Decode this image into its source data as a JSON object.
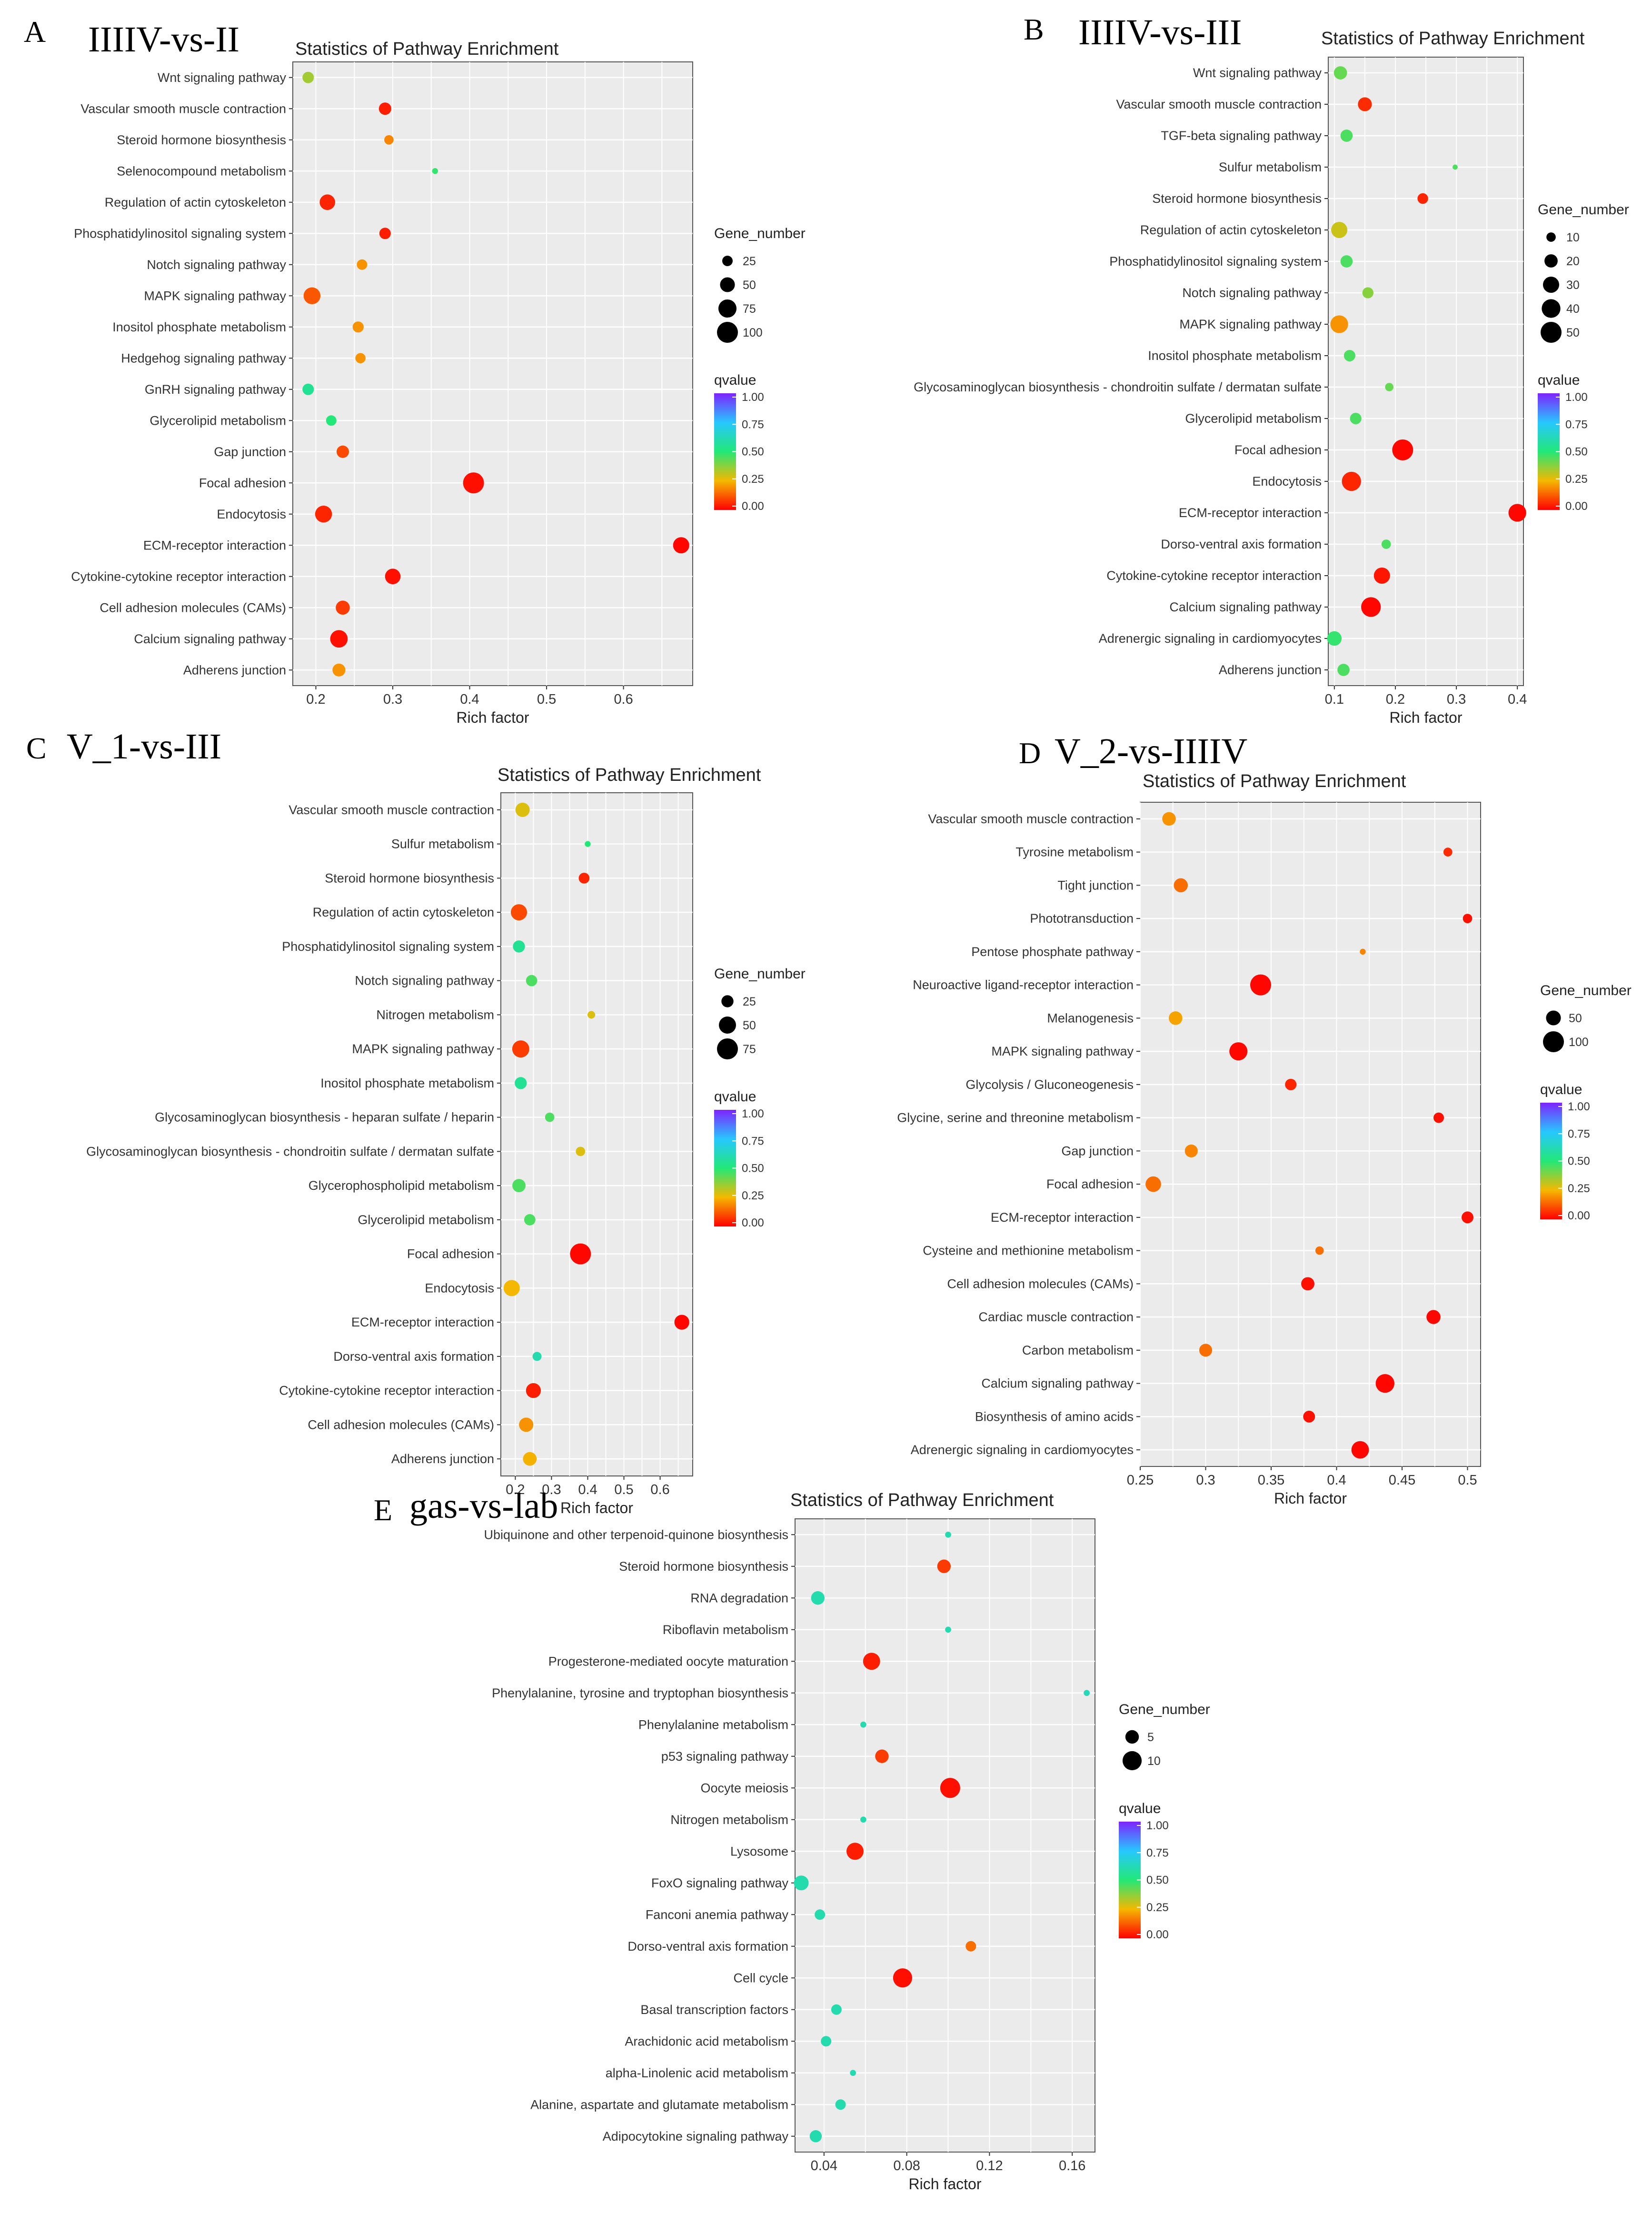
{
  "colors": {
    "panel_bg": "#ebebeb",
    "grid": "#ffffff",
    "q0": "#ff0000",
    "q025": "#f5b800",
    "q05": "#22e878",
    "q075": "#27c7ff",
    "q1": "#7f22ff"
  },
  "chart_data": [
    {
      "type": "scatter",
      "letter": "A",
      "name": "IIIIV-vs-II",
      "title": "Statistics of Pathway Enrichment",
      "xlabel": "Rich factor",
      "ylabel": "",
      "xlim": [
        0.17,
        0.69
      ],
      "xticks": [
        0.2,
        0.3,
        0.4,
        0.5,
        0.6
      ],
      "size_legend_title": "Gene_number",
      "size_legend": [
        25,
        50,
        75,
        100
      ],
      "max_count": 100,
      "color_legend_title": "qvalue",
      "color_ticks": [
        "1.00",
        "0.75",
        "0.50",
        "0.25",
        "0.00"
      ],
      "pathways": [
        {
          "name": "Wnt signaling pathway",
          "rich_factor": 0.19,
          "gene_number": 30,
          "qvalue": 0.35
        },
        {
          "name": "Vascular smooth muscle contraction",
          "rich_factor": 0.29,
          "gene_number": 35,
          "qvalue": 0.04
        },
        {
          "name": "Steroid hormone biosynthesis",
          "rich_factor": 0.295,
          "gene_number": 20,
          "qvalue": 0.18
        },
        {
          "name": "Selenocompound metabolism",
          "rich_factor": 0.355,
          "gene_number": 8,
          "qvalue": 0.48
        },
        {
          "name": "Regulation of actin cytoskeleton",
          "rich_factor": 0.215,
          "gene_number": 55,
          "qvalue": 0.05
        },
        {
          "name": "Phosphatidylinositol signaling system",
          "rich_factor": 0.29,
          "gene_number": 30,
          "qvalue": 0.04
        },
        {
          "name": "Notch signaling pathway",
          "rich_factor": 0.26,
          "gene_number": 25,
          "qvalue": 0.2
        },
        {
          "name": "MAPK signaling pathway",
          "rich_factor": 0.195,
          "gene_number": 65,
          "qvalue": 0.12
        },
        {
          "name": "Inositol phosphate metabolism",
          "rich_factor": 0.255,
          "gene_number": 28,
          "qvalue": 0.2
        },
        {
          "name": "Hedgehog signaling pathway",
          "rich_factor": 0.258,
          "gene_number": 24,
          "qvalue": 0.2
        },
        {
          "name": "GnRH signaling pathway",
          "rich_factor": 0.19,
          "gene_number": 30,
          "qvalue": 0.55
        },
        {
          "name": "Glycerolipid metabolism",
          "rich_factor": 0.22,
          "gene_number": 25,
          "qvalue": 0.5
        },
        {
          "name": "Gap junction",
          "rich_factor": 0.235,
          "gene_number": 35,
          "qvalue": 0.1
        },
        {
          "name": "Focal adhesion",
          "rich_factor": 0.405,
          "gene_number": 100,
          "qvalue": 0.02
        },
        {
          "name": "Endocytosis",
          "rich_factor": 0.21,
          "gene_number": 65,
          "qvalue": 0.05
        },
        {
          "name": "ECM-receptor interaction",
          "rich_factor": 0.675,
          "gene_number": 60,
          "qvalue": 0.01
        },
        {
          "name": "Cytokine-cytokine receptor interaction",
          "rich_factor": 0.3,
          "gene_number": 55,
          "qvalue": 0.02
        },
        {
          "name": "Cell adhesion molecules (CAMs)",
          "rich_factor": 0.235,
          "gene_number": 45,
          "qvalue": 0.08
        },
        {
          "name": "Calcium signaling pathway",
          "rich_factor": 0.23,
          "gene_number": 70,
          "qvalue": 0.02
        },
        {
          "name": "Adherens junction",
          "rich_factor": 0.23,
          "gene_number": 38,
          "qvalue": 0.2
        }
      ]
    },
    {
      "type": "scatter",
      "letter": "B",
      "name": "IIIIV-vs-III",
      "title": "Statistics of Pathway Enrichment",
      "xlabel": "Rich factor",
      "ylabel": "",
      "xlim": [
        0.09,
        0.41
      ],
      "xticks": [
        0.1,
        0.2,
        0.3,
        0.4
      ],
      "size_legend_title": "Gene_number",
      "size_legend": [
        10,
        20,
        30,
        40,
        50
      ],
      "max_count": 50,
      "color_legend_title": "qvalue",
      "color_ticks": [
        "1.00",
        "0.75",
        "0.50",
        "0.25",
        "0.00"
      ],
      "pathways": [
        {
          "name": "Wnt signaling pathway",
          "rich_factor": 0.11,
          "gene_number": 20,
          "qvalue": 0.42
        },
        {
          "name": "Vascular smooth muscle contraction",
          "rich_factor": 0.15,
          "gene_number": 22,
          "qvalue": 0.06
        },
        {
          "name": "TGF-beta signaling pathway",
          "rich_factor": 0.12,
          "gene_number": 17,
          "qvalue": 0.45
        },
        {
          "name": "Sulfur metabolism",
          "rich_factor": 0.298,
          "gene_number": 3,
          "qvalue": 0.45
        },
        {
          "name": "Steroid hormone biosynthesis",
          "rich_factor": 0.245,
          "gene_number": 13,
          "qvalue": 0.05
        },
        {
          "name": "Regulation of actin cytoskeleton",
          "rich_factor": 0.108,
          "gene_number": 30,
          "qvalue": 0.3
        },
        {
          "name": "Phosphatidylinositol signaling system",
          "rich_factor": 0.12,
          "gene_number": 17,
          "qvalue": 0.45
        },
        {
          "name": "Notch signaling pathway",
          "rich_factor": 0.155,
          "gene_number": 14,
          "qvalue": 0.38
        },
        {
          "name": "MAPK signaling pathway",
          "rich_factor": 0.108,
          "gene_number": 36,
          "qvalue": 0.2
        },
        {
          "name": "Inositol phosphate metabolism",
          "rich_factor": 0.125,
          "gene_number": 15,
          "qvalue": 0.45
        },
        {
          "name": "Glycosaminoglycan biosynthesis - chondroitin sulfate / dermatan sulfate",
          "rich_factor": 0.19,
          "gene_number": 8,
          "qvalue": 0.42
        },
        {
          "name": "Glycerolipid metabolism",
          "rich_factor": 0.135,
          "gene_number": 15,
          "qvalue": 0.45
        },
        {
          "name": "Focal adhesion",
          "rich_factor": 0.212,
          "gene_number": 50,
          "qvalue": 0.01
        },
        {
          "name": "Endocytosis",
          "rich_factor": 0.128,
          "gene_number": 42,
          "qvalue": 0.05
        },
        {
          "name": "ECM-receptor interaction",
          "rich_factor": 0.4,
          "gene_number": 36,
          "qvalue": 0.01
        },
        {
          "name": "Dorso-ventral axis formation",
          "rich_factor": 0.185,
          "gene_number": 10,
          "qvalue": 0.45
        },
        {
          "name": "Cytokine-cytokine receptor interaction",
          "rich_factor": 0.178,
          "gene_number": 30,
          "qvalue": 0.03
        },
        {
          "name": "Calcium signaling pathway",
          "rich_factor": 0.16,
          "gene_number": 44,
          "qvalue": 0.01
        },
        {
          "name": "Adrenergic signaling in cardiomyocytes",
          "rich_factor": 0.1,
          "gene_number": 24,
          "qvalue": 0.48
        },
        {
          "name": "Adherens junction",
          "rich_factor": 0.115,
          "gene_number": 17,
          "qvalue": 0.45
        }
      ]
    },
    {
      "type": "scatter",
      "letter": "C",
      "name": "V_1-vs-III",
      "title": "Statistics of Pathway Enrichment",
      "xlabel": "Rich factor",
      "ylabel": "",
      "xlim": [
        0.16,
        0.69
      ],
      "xticks": [
        0.2,
        0.3,
        0.4,
        0.5,
        0.6
      ],
      "size_legend_title": "Gene_number",
      "size_legend": [
        25,
        50,
        75
      ],
      "max_count": 75,
      "color_legend_title": "qvalue",
      "color_ticks": [
        "1.00",
        "0.75",
        "0.50",
        "0.25",
        "0.00"
      ],
      "pathways": [
        {
          "name": "Vascular smooth muscle contraction",
          "rich_factor": 0.22,
          "gene_number": 35,
          "qvalue": 0.28
        },
        {
          "name": "Sulfur metabolism",
          "rich_factor": 0.4,
          "gene_number": 6,
          "qvalue": 0.5
        },
        {
          "name": "Steroid hormone biosynthesis",
          "rich_factor": 0.39,
          "gene_number": 20,
          "qvalue": 0.05
        },
        {
          "name": "Regulation of actin cytoskeleton",
          "rich_factor": 0.21,
          "gene_number": 45,
          "qvalue": 0.1
        },
        {
          "name": "Phosphatidylinositol signaling system",
          "rich_factor": 0.21,
          "gene_number": 25,
          "qvalue": 0.55
        },
        {
          "name": "Notch signaling pathway",
          "rich_factor": 0.245,
          "gene_number": 22,
          "qvalue": 0.45
        },
        {
          "name": "Nitrogen metabolism",
          "rich_factor": 0.41,
          "gene_number": 10,
          "qvalue": 0.28
        },
        {
          "name": "MAPK signaling pathway",
          "rich_factor": 0.215,
          "gene_number": 50,
          "qvalue": 0.08
        },
        {
          "name": "Inositol phosphate metabolism",
          "rich_factor": 0.215,
          "gene_number": 25,
          "qvalue": 0.55
        },
        {
          "name": "Glycosaminoglycan biosynthesis - heparan sulfate / heparin",
          "rich_factor": 0.295,
          "gene_number": 15,
          "qvalue": 0.45
        },
        {
          "name": "Glycosaminoglycan biosynthesis - chondroitin sulfate / dermatan sulfate",
          "rich_factor": 0.38,
          "gene_number": 15,
          "qvalue": 0.28
        },
        {
          "name": "Glycerophospholipid metabolism",
          "rich_factor": 0.21,
          "gene_number": 30,
          "qvalue": 0.45
        },
        {
          "name": "Glycerolipid metabolism",
          "rich_factor": 0.24,
          "gene_number": 22,
          "qvalue": 0.45
        },
        {
          "name": "Focal adhesion",
          "rich_factor": 0.38,
          "gene_number": 75,
          "qvalue": 0.01
        },
        {
          "name": "Endocytosis",
          "rich_factor": 0.19,
          "gene_number": 45,
          "qvalue": 0.25
        },
        {
          "name": "ECM-receptor interaction",
          "rich_factor": 0.66,
          "gene_number": 38,
          "qvalue": 0.01
        },
        {
          "name": "Dorso-ventral axis formation",
          "rich_factor": 0.26,
          "gene_number": 14,
          "qvalue": 0.6
        },
        {
          "name": "Cytokine-cytokine receptor interaction",
          "rich_factor": 0.25,
          "gene_number": 38,
          "qvalue": 0.04
        },
        {
          "name": "Cell adhesion molecules (CAMs)",
          "rich_factor": 0.23,
          "gene_number": 35,
          "qvalue": 0.2
        },
        {
          "name": "Adherens junction",
          "rich_factor": 0.24,
          "gene_number": 32,
          "qvalue": 0.24
        }
      ]
    },
    {
      "type": "scatter",
      "letter": "D",
      "name": "V_2-vs-IIIIV",
      "title": "Statistics of Pathway Enrichment",
      "xlabel": "Rich factor",
      "ylabel": "",
      "xlim": [
        0.25,
        0.51
      ],
      "xticks": [
        0.25,
        0.3,
        0.35,
        0.4,
        0.45,
        0.5
      ],
      "size_legend_title": "Gene_number",
      "size_legend": [
        50,
        100
      ],
      "max_count": 100,
      "color_legend_title": "qvalue",
      "color_ticks": [
        "1.00",
        "0.75",
        "0.50",
        "0.25",
        "0.00"
      ],
      "pathways": [
        {
          "name": "Vascular smooth muscle contraction",
          "rich_factor": 0.272,
          "gene_number": 42,
          "qvalue": 0.2
        },
        {
          "name": "Tyrosine metabolism",
          "rich_factor": 0.485,
          "gene_number": 18,
          "qvalue": 0.06
        },
        {
          "name": "Tight junction",
          "rich_factor": 0.281,
          "gene_number": 45,
          "qvalue": 0.15
        },
        {
          "name": "Phototransduction",
          "rich_factor": 0.5,
          "gene_number": 20,
          "qvalue": 0.02
        },
        {
          "name": "Pentose phosphate pathway",
          "rich_factor": 0.42,
          "gene_number": 8,
          "qvalue": 0.18
        },
        {
          "name": "Neuroactive ligand-receptor interaction",
          "rich_factor": 0.342,
          "gene_number": 100,
          "qvalue": 0.01
        },
        {
          "name": "Melanogenesis",
          "rich_factor": 0.277,
          "gene_number": 42,
          "qvalue": 0.22
        },
        {
          "name": "MAPK signaling pathway",
          "rich_factor": 0.325,
          "gene_number": 75,
          "qvalue": 0.01
        },
        {
          "name": "Glycolysis / Gluconeogenesis",
          "rich_factor": 0.365,
          "gene_number": 30,
          "qvalue": 0.05
        },
        {
          "name": "Glycine, serine and threonine metabolism",
          "rich_factor": 0.478,
          "gene_number": 25,
          "qvalue": 0.02
        },
        {
          "name": "Gap junction",
          "rich_factor": 0.289,
          "gene_number": 38,
          "qvalue": 0.18
        },
        {
          "name": "Focal adhesion",
          "rich_factor": 0.26,
          "gene_number": 55,
          "qvalue": 0.15
        },
        {
          "name": "ECM-receptor interaction",
          "rich_factor": 0.5,
          "gene_number": 32,
          "qvalue": 0.02
        },
        {
          "name": "Cysteine and methionine metabolism",
          "rich_factor": 0.387,
          "gene_number": 16,
          "qvalue": 0.15
        },
        {
          "name": "Cell adhesion molecules (CAMs)",
          "rich_factor": 0.378,
          "gene_number": 40,
          "qvalue": 0.02
        },
        {
          "name": "Cardiac muscle contraction",
          "rich_factor": 0.474,
          "gene_number": 45,
          "qvalue": 0.01
        },
        {
          "name": "Carbon metabolism",
          "rich_factor": 0.3,
          "gene_number": 38,
          "qvalue": 0.15
        },
        {
          "name": "Calcium signaling pathway",
          "rich_factor": 0.437,
          "gene_number": 80,
          "qvalue": 0.01
        },
        {
          "name": "Biosynthesis of amino acids",
          "rich_factor": 0.379,
          "gene_number": 32,
          "qvalue": 0.02
        },
        {
          "name": "Adrenergic signaling in cardiomyocytes",
          "rich_factor": 0.418,
          "gene_number": 70,
          "qvalue": 0.01
        }
      ]
    },
    {
      "type": "scatter",
      "letter": "E",
      "name": "gas-vs-lab",
      "title": "Statistics of Pathway Enrichment",
      "xlabel": "Rich factor",
      "ylabel": "",
      "xlim": [
        0.026,
        0.171
      ],
      "xticks": [
        0.04,
        0.08,
        0.12,
        0.16
      ],
      "size_legend_title": "Gene_number",
      "size_legend": [
        5,
        10
      ],
      "max_count": 12,
      "color_legend_title": "qvalue",
      "color_ticks": [
        "1.00",
        "0.75",
        "0.50",
        "0.25",
        "0.00"
      ],
      "pathways": [
        {
          "name": "Ubiquinone and other terpenoid-quinone biosynthesis",
          "rich_factor": 0.1,
          "gene_number": 1,
          "qvalue": 0.6
        },
        {
          "name": "Steroid hormone biosynthesis",
          "rich_factor": 0.098,
          "gene_number": 5,
          "qvalue": 0.08
        },
        {
          "name": "RNA degradation",
          "rich_factor": 0.037,
          "gene_number": 5,
          "qvalue": 0.6
        },
        {
          "name": "Riboflavin metabolism",
          "rich_factor": 0.1,
          "gene_number": 1,
          "qvalue": 0.6
        },
        {
          "name": "Progesterone-mediated oocyte maturation",
          "rich_factor": 0.063,
          "gene_number": 8,
          "qvalue": 0.04
        },
        {
          "name": "Phenylalanine, tyrosine and tryptophan biosynthesis",
          "rich_factor": 0.167,
          "gene_number": 1,
          "qvalue": 0.62
        },
        {
          "name": "Phenylalanine metabolism",
          "rich_factor": 0.059,
          "gene_number": 1,
          "qvalue": 0.6
        },
        {
          "name": "p53 signaling pathway",
          "rich_factor": 0.068,
          "gene_number": 5,
          "qvalue": 0.08
        },
        {
          "name": "Oocyte meiosis",
          "rich_factor": 0.101,
          "gene_number": 11,
          "qvalue": 0.02
        },
        {
          "name": "Nitrogen metabolism",
          "rich_factor": 0.059,
          "gene_number": 1,
          "qvalue": 0.6
        },
        {
          "name": "Lysosome",
          "rich_factor": 0.055,
          "gene_number": 8,
          "qvalue": 0.04
        },
        {
          "name": "FoxO signaling pathway",
          "rich_factor": 0.029,
          "gene_number": 6,
          "qvalue": 0.6
        },
        {
          "name": "Fanconi anemia pathway",
          "rich_factor": 0.038,
          "gene_number": 3,
          "qvalue": 0.6
        },
        {
          "name": "Dorso-ventral axis formation",
          "rich_factor": 0.111,
          "gene_number": 3,
          "qvalue": 0.15
        },
        {
          "name": "Cell cycle",
          "rich_factor": 0.078,
          "gene_number": 10,
          "qvalue": 0.02
        },
        {
          "name": "Basal transcription factors",
          "rich_factor": 0.046,
          "gene_number": 3,
          "qvalue": 0.6
        },
        {
          "name": "Arachidonic acid metabolism",
          "rich_factor": 0.041,
          "gene_number": 3,
          "qvalue": 0.6
        },
        {
          "name": "alpha-Linolenic acid metabolism",
          "rich_factor": 0.054,
          "gene_number": 1,
          "qvalue": 0.6
        },
        {
          "name": "Alanine, aspartate and glutamate metabolism",
          "rich_factor": 0.048,
          "gene_number": 3,
          "qvalue": 0.6
        },
        {
          "name": "Adipocytokine signaling pathway",
          "rich_factor": 0.036,
          "gene_number": 4,
          "qvalue": 0.6
        }
      ]
    }
  ]
}
